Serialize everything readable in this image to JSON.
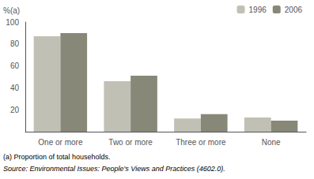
{
  "chart_data": {
    "type": "bar",
    "categories": [
      "One or more",
      "Two or more",
      "Three or more",
      "None"
    ],
    "series": [
      {
        "name": "1996",
        "color": "#c0c0b4",
        "values": [
          87,
          46,
          12,
          13
        ]
      },
      {
        "name": "2006",
        "color": "#888878",
        "values": [
          90,
          51,
          16,
          10
        ]
      }
    ],
    "ylabel": "%(a)",
    "ylim": [
      0,
      100
    ],
    "yticks": [
      20,
      40,
      60,
      80,
      100
    ],
    "grid": false,
    "legend": "upper right",
    "annotations": [
      "(a) Proportion of total households.",
      "Source: Environmental Issues: People's Views and Practices (4602.0)."
    ]
  }
}
